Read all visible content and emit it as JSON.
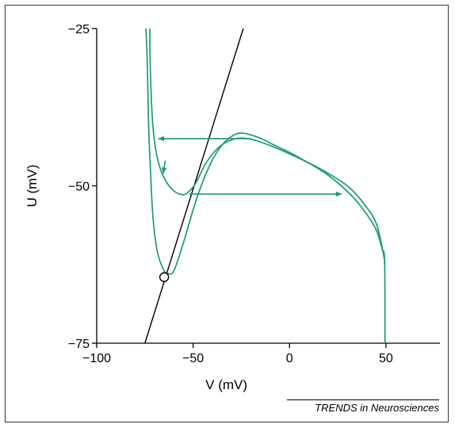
{
  "credit": "TRENDS in Neurosciences",
  "colors": {
    "trajectory": "#1a9a78",
    "nullcline": "#000000",
    "axis": "#000000"
  },
  "chart_data": {
    "type": "line",
    "title": "",
    "xlabel": "V (mV)",
    "ylabel": "U (mV)",
    "xlim": [
      -100,
      78
    ],
    "ylim": [
      -75,
      -25
    ],
    "xticks": [
      -100,
      -50,
      0,
      50
    ],
    "xtick_labels": [
      "−100",
      "−50",
      "0",
      "50"
    ],
    "yticks": [
      -75,
      -50,
      -25
    ],
    "ytick_labels": [
      "−75",
      "−50",
      "−25"
    ],
    "grid": false,
    "series": [
      {
        "kind": "nullcline",
        "x": [
          -75,
          -24
        ],
        "y": [
          -75,
          -25
        ]
      },
      {
        "kind": "trajectory-outer",
        "x": [
          -74.5,
          -73.8,
          -73.1,
          -72.2,
          -70.8,
          -68.5,
          -65.5,
          -63.2,
          -60,
          -55,
          -47,
          -38,
          -28,
          -18,
          -8,
          5,
          20,
          32,
          40,
          45,
          48,
          49.3,
          49.5
        ],
        "y": [
          -25,
          -30,
          -40,
          -47,
          -55,
          -60.5,
          -63.2,
          -63.9,
          -63.5,
          -59,
          -51,
          -44.8,
          -41.8,
          -42.1,
          -43.5,
          -45.5,
          -48.3,
          -51.5,
          -54.5,
          -57,
          -60,
          -62,
          -75
        ]
      },
      {
        "kind": "trajectory-inner",
        "x": [
          -72.5,
          -72.3,
          -71.4,
          -69.8,
          -67.3,
          -64,
          -60,
          -55.5,
          -52.5,
          -48.5,
          -43,
          -36,
          -28,
          -20,
          -10,
          2,
          16,
          30,
          39,
          45,
          48.5,
          49.5
        ],
        "y": [
          -25,
          -30,
          -38,
          -43.5,
          -47,
          -49.3,
          -50.8,
          -51.4,
          -51,
          -49.5,
          -46.2,
          -43.7,
          -42.5,
          -42.6,
          -43.6,
          -45.2,
          -47.3,
          -50,
          -53,
          -56,
          -60.5,
          -62.5
        ]
      },
      {
        "kind": "arrow",
        "x": [
          -20,
          -68
        ],
        "y": [
          -42.5,
          -42.5
        ]
      },
      {
        "kind": "arrow",
        "x": [
          -64.5,
          -65.5
        ],
        "y": [
          -46,
          -48
        ]
      },
      {
        "kind": "arrow",
        "x": [
          -52,
          27
        ],
        "y": [
          -51.3,
          -51.3
        ]
      }
    ],
    "markers": [
      {
        "kind": "fixed-point",
        "x": -65,
        "y": -64.5
      }
    ]
  }
}
